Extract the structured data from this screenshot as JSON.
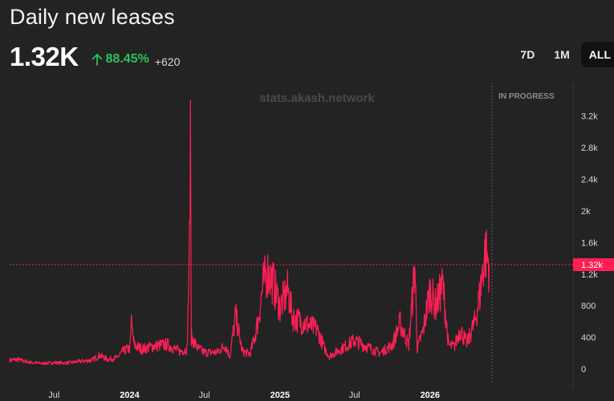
{
  "header": {
    "title": "Daily new leases",
    "value": "1.32K",
    "change_pct": "88.45%",
    "change_abs": "+620"
  },
  "range_tabs": [
    {
      "label": "7D",
      "active": false
    },
    {
      "label": "1M",
      "active": false
    },
    {
      "label": "ALL",
      "active": true
    }
  ],
  "watermark": "stats.akash.network",
  "in_progress_label": "IN PROGRESS",
  "current_marker_label": "1.32k",
  "colors": {
    "line": "#ff1f55",
    "positive": "#2bc25a",
    "background": "#232323"
  },
  "chart_data": {
    "type": "line",
    "title": "Daily new leases",
    "x_range": [
      "2023-03-15",
      "2026-12-15"
    ],
    "ylim": [
      0,
      3400
    ],
    "y_ticks": [
      0,
      400,
      800,
      1200,
      1600,
      2000,
      2400,
      2800,
      3200
    ],
    "y_tick_labels": [
      "0",
      "400",
      "800",
      "1.2k",
      "1.6k",
      "2k",
      "2.4k",
      "2.8k",
      "3.2k"
    ],
    "x_ticks": [
      {
        "date": "2023-07-01",
        "label": "Jul",
        "year": false
      },
      {
        "date": "2024-01-01",
        "label": "2024",
        "year": true
      },
      {
        "date": "2024-07-01",
        "label": "Jul",
        "year": false
      },
      {
        "date": "2025-01-01",
        "label": "2025",
        "year": true
      },
      {
        "date": "2025-07-01",
        "label": "Jul",
        "year": false
      },
      {
        "date": "2026-01-01",
        "label": "2026",
        "year": true
      }
    ],
    "current_value": 1320,
    "in_progress_start": "2026-06-01",
    "series": [
      {
        "points": [
          [
            "2023-03-15",
            110
          ],
          [
            "2023-04-01",
            120
          ],
          [
            "2023-05-01",
            85
          ],
          [
            "2023-06-01",
            70
          ],
          [
            "2023-07-01",
            80
          ],
          [
            "2023-08-01",
            75
          ],
          [
            "2023-09-01",
            95
          ],
          [
            "2023-10-01",
            110
          ],
          [
            "2023-10-20",
            170
          ],
          [
            "2023-11-10",
            120
          ],
          [
            "2023-12-01",
            140
          ],
          [
            "2023-12-15",
            220
          ],
          [
            "2024-01-01",
            260
          ],
          [
            "2024-01-05",
            560
          ],
          [
            "2024-01-12",
            300
          ],
          [
            "2024-02-01",
            250
          ],
          [
            "2024-03-01",
            290
          ],
          [
            "2024-04-01",
            310
          ],
          [
            "2024-05-01",
            220
          ],
          [
            "2024-05-20",
            250
          ],
          [
            "2024-05-27",
            1850
          ],
          [
            "2024-05-28",
            3400
          ],
          [
            "2024-05-30",
            400
          ],
          [
            "2024-06-15",
            260
          ],
          [
            "2024-07-01",
            210
          ],
          [
            "2024-08-01",
            210
          ],
          [
            "2024-08-20",
            300
          ],
          [
            "2024-09-01",
            160
          ],
          [
            "2024-09-15",
            680
          ],
          [
            "2024-10-01",
            220
          ],
          [
            "2024-10-20",
            190
          ],
          [
            "2024-11-01",
            420
          ],
          [
            "2024-11-10",
            650
          ],
          [
            "2024-11-20",
            1050
          ],
          [
            "2024-12-01",
            1230
          ],
          [
            "2024-12-15",
            1100
          ],
          [
            "2025-01-01",
            780
          ],
          [
            "2025-01-20",
            1000
          ],
          [
            "2025-02-01",
            650
          ],
          [
            "2025-03-01",
            580
          ],
          [
            "2025-04-01",
            500
          ],
          [
            "2025-04-20",
            250
          ],
          [
            "2025-05-01",
            160
          ],
          [
            "2025-06-01",
            260
          ],
          [
            "2025-07-01",
            360
          ],
          [
            "2025-08-01",
            280
          ],
          [
            "2025-09-01",
            200
          ],
          [
            "2025-10-01",
            300
          ],
          [
            "2025-10-20",
            580
          ],
          [
            "2025-11-10",
            300
          ],
          [
            "2025-11-25",
            1290
          ],
          [
            "2025-12-01",
            260
          ],
          [
            "2025-12-15",
            480
          ],
          [
            "2026-01-01",
            1000
          ],
          [
            "2026-01-15",
            800
          ],
          [
            "2026-02-01",
            1070
          ],
          [
            "2026-02-15",
            300
          ],
          [
            "2026-03-01",
            280
          ],
          [
            "2026-03-15",
            500
          ],
          [
            "2026-04-01",
            320
          ],
          [
            "2026-04-20",
            600
          ],
          [
            "2026-05-01",
            900
          ],
          [
            "2026-05-15",
            1480
          ],
          [
            "2026-05-25",
            1320
          ]
        ]
      }
    ]
  }
}
